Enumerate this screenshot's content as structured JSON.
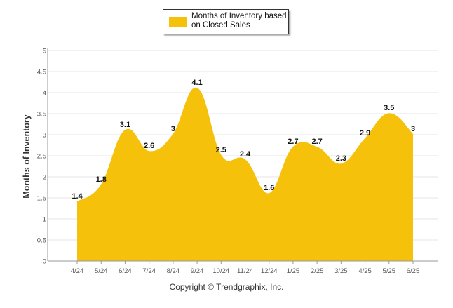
{
  "chart_data": {
    "type": "area",
    "categories": [
      "4/24",
      "5/24",
      "6/24",
      "7/24",
      "8/24",
      "9/24",
      "10/24",
      "11/24",
      "12/24",
      "1/25",
      "2/25",
      "3/25",
      "4/25",
      "5/25",
      "6/25"
    ],
    "series": [
      {
        "name": "Months of Inventory based on Closed Sales",
        "values": [
          1.4,
          1.8,
          3.1,
          2.6,
          3,
          4.1,
          2.5,
          2.4,
          1.6,
          2.7,
          2.7,
          2.3,
          2.9,
          3.5,
          3
        ],
        "data_labels": [
          "1.4",
          "1.8",
          "3.1",
          "2.6",
          "3",
          "4.1",
          "2.5",
          "2.4",
          "1.6",
          "2.7",
          "2.7",
          "2.3",
          "2.9",
          "3.5",
          "3"
        ],
        "color": "#F5C10A"
      }
    ],
    "ylabel": "Months of Inventory",
    "ylim": [
      0,
      5
    ],
    "yticks": [
      "0",
      "0.5",
      "1",
      "1.5",
      "2",
      "2.5",
      "3",
      "3.5",
      "4",
      "4.5",
      "5"
    ],
    "grid": true,
    "legend_position": "top-center"
  },
  "legend": {
    "label": "Months of Inventory based on Closed Sales",
    "color": "#F5C10A"
  },
  "footer": {
    "copyright": "Copyright © Trendgraphix, Inc."
  },
  "colors": {
    "area": "#F5C10A",
    "grid": "#e6e6e6",
    "axis": "#999999"
  }
}
